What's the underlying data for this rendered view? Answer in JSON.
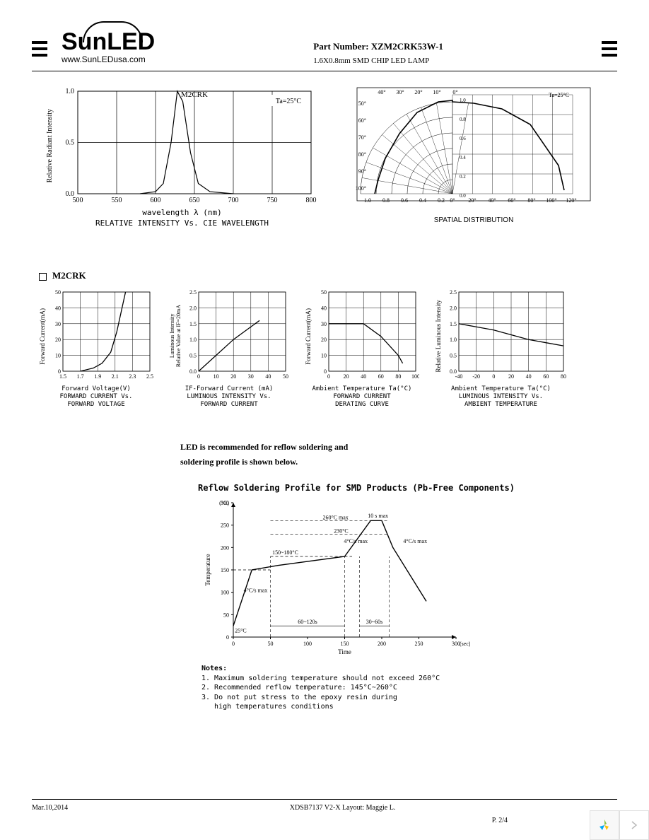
{
  "header": {
    "logo_text": "SunLED",
    "url": "www.SunLEDusa.com",
    "part_label": "Part Number:",
    "part_number": "XZM2CRK53W-1",
    "description": "1.6X0.8mm SMD CHIP LED LAMP"
  },
  "chart1": {
    "type": "line",
    "title": "RELATIVE INTENSITY Vs. CIE WAVELENGTH",
    "subtitle": "M2CRK",
    "annotation": "Ta=25°C",
    "xlabel": "wavelength λ (nm)",
    "ylabel": "Relative Radiant Intensity",
    "xlim": [
      500,
      800
    ],
    "xtick_step": 50,
    "ylim": [
      0,
      1.0
    ],
    "ytick_step": 0.5,
    "x": [
      580,
      600,
      610,
      620,
      628,
      635,
      645,
      655,
      670,
      700
    ],
    "y": [
      0,
      0.02,
      0.1,
      0.5,
      1.0,
      0.9,
      0.4,
      0.1,
      0.02,
      0
    ],
    "line_color": "#000000",
    "background_color": "#ffffff",
    "grid_color": "#000000"
  },
  "chart2": {
    "type": "polar",
    "title": "SPATIAL DISTRIBUTION",
    "annotation": "Ta=25°C",
    "angle_labels_left": [
      "40°",
      "30°",
      "20°",
      "10°",
      "0°"
    ],
    "angle_labels_side": [
      "50°",
      "60°",
      "70°",
      "80°",
      "90°",
      "100°"
    ],
    "angle_labels_bottom_left": [
      "1.0",
      "0.8",
      "0.6",
      "0.4",
      "0.2"
    ],
    "angle_labels_bottom_right": [
      "0°",
      "20°",
      "40°",
      "60°",
      "80°",
      "100°",
      "120°"
    ],
    "radial_labels": [
      "1.0",
      "0.8",
      "0.6",
      "0.4",
      "0.2",
      "0.0"
    ],
    "line_color": "#000000"
  },
  "section_label": "M2CRK",
  "chart3": {
    "type": "line",
    "title": "FORWARD CURRENT Vs.\nFORWARD VOLTAGE",
    "xlabel": "Forward Voltage(V)",
    "ylabel": "Forward Current(mA)",
    "xlim": [
      1.5,
      2.5
    ],
    "xtick_step": 0.2,
    "ylim": [
      0,
      50
    ],
    "ytick_step": 10,
    "x": [
      1.7,
      1.85,
      1.95,
      2.05,
      2.12,
      2.18,
      2.22
    ],
    "y": [
      0,
      2,
      5,
      12,
      25,
      40,
      50
    ],
    "line_color": "#000000",
    "grid_color": "#000000"
  },
  "chart4": {
    "type": "line",
    "title": "LUMINOUS INTENSITY Vs.\nFORWARD CURRENT",
    "xlabel": "IF-Forward Current (mA)",
    "ylabel": "Luminous Intensity\nRelative Value at IF=20mA",
    "xlim": [
      0,
      50
    ],
    "xtick_step": 10,
    "ylim": [
      0,
      2.5
    ],
    "ytick_step": 0.5,
    "x": [
      0,
      10,
      20,
      30,
      35
    ],
    "y": [
      0,
      0.5,
      1.0,
      1.4,
      1.6
    ],
    "line_color": "#000000",
    "grid_color": "#000000"
  },
  "chart5": {
    "type": "line",
    "title": "FORWARD CURRENT\nDERATING CURVE",
    "xlabel": "Ambient Temperature Ta(°C)",
    "ylabel": "Forward Current(mA)",
    "xlim": [
      0,
      100
    ],
    "xtick_step": 20,
    "ylim": [
      0,
      50
    ],
    "ytick_step": 10,
    "x": [
      0,
      25,
      40,
      60,
      80,
      85
    ],
    "y": [
      30,
      30,
      30,
      22,
      10,
      5
    ],
    "line_color": "#000000",
    "grid_color": "#000000"
  },
  "chart6": {
    "type": "line",
    "title": "LUMINOUS INTENSITY Vs.\nAMBIENT TEMPERATURE",
    "xlabel": "Ambient Temperature Ta(°C)",
    "ylabel": "Relative Luminous Intensity",
    "xlim": [
      -40,
      80
    ],
    "xtick_step": 20,
    "ylim": [
      0,
      2.5
    ],
    "ytick_step": 0.5,
    "x": [
      -40,
      -20,
      0,
      20,
      40,
      60,
      80
    ],
    "y": [
      1.5,
      1.4,
      1.3,
      1.15,
      1.0,
      0.9,
      0.8
    ],
    "line_color": "#000000",
    "grid_color": "#000000"
  },
  "reflow": {
    "text1": "LED is recommended for reflow soldering and",
    "text2": "soldering profile is shown below.",
    "title": "Reflow Soldering Profile for SMD Products (Pb-Free Components)",
    "ylabel": "Temperature",
    "xlabel": "Time",
    "xunit": "(sec)",
    "ylim": [
      0,
      300
    ],
    "ytick_step": 50,
    "xlim": [
      0,
      300
    ],
    "xtick_step": 50,
    "annotations": {
      "peak_temp": "260°C max",
      "temp_230": "230°C",
      "preheat_temp": "150~180°C",
      "start_temp": "25°C",
      "ramp1": "4°C/s max",
      "ramp2": "4°C/s max",
      "ramp3": "4°C/s max",
      "preheat_time": "60~120s",
      "peak_time_range": "30~60s",
      "peak_dwell": "10 s max"
    },
    "profile_x": [
      0,
      25,
      60,
      150,
      185,
      200,
      215,
      260
    ],
    "profile_y": [
      25,
      150,
      160,
      180,
      260,
      260,
      200,
      80
    ],
    "line_color": "#000000",
    "grid_color": "#000000"
  },
  "notes": {
    "heading": "Notes:",
    "n1": "1. Maximum soldering temperature should not exceed 260°C",
    "n2": "2. Recommended reflow temperature: 145°C~260°C",
    "n3": "3. Do not put stress to the epoxy resin during",
    "n3b": "   high temperatures conditions"
  },
  "footer": {
    "date": "Mar.10,2014",
    "center": "XDSB7137    V2-X    Layout: Maggie L.",
    "page": "P. 2/4"
  }
}
